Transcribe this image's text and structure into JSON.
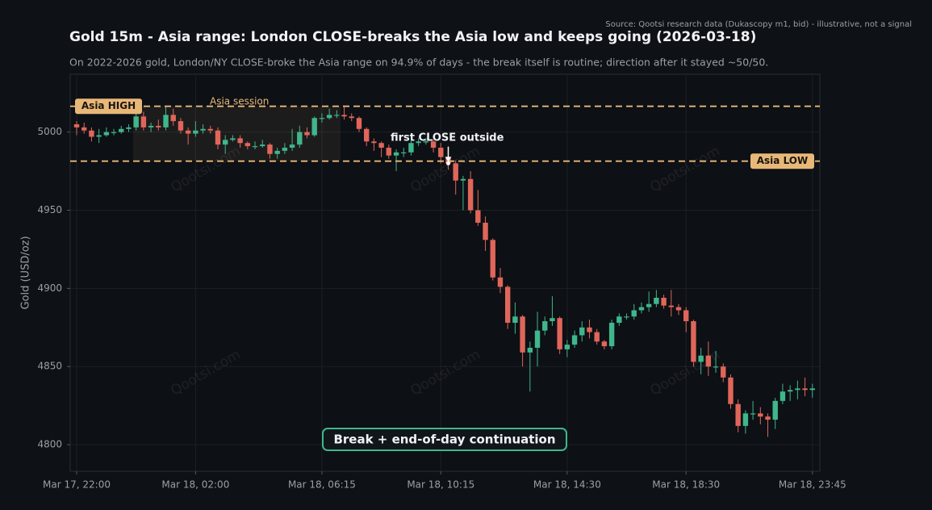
{
  "chart_data": {
    "type": "candlestick",
    "title": "Gold 15m - Asia range: London CLOSE-breaks the Asia low and keeps going (2026-03-18)",
    "subtitle": "On 2022-2026 gold, London/NY CLOSE-broke the Asia range on 94.9% of days - the break itself is routine; direction after it stayed ~50/50.",
    "source": "Source: Qootsi research data (Dukascopy m1, bid) - illustrative, not a signal",
    "ylabel": "Gold (USD/oz)",
    "watermark": "Qootsi.com",
    "categories": [
      "Mar 17, 22:00",
      null,
      null,
      null,
      null,
      null,
      null,
      null,
      null,
      null,
      null,
      null,
      null,
      null,
      null,
      null,
      "Mar 18, 02:00",
      null,
      null,
      null,
      null,
      null,
      null,
      null,
      null,
      null,
      null,
      null,
      null,
      null,
      null,
      null,
      null,
      "Mar 18, 06:15",
      null,
      null,
      null,
      null,
      null,
      null,
      null,
      null,
      null,
      null,
      null,
      null,
      null,
      null,
      null,
      "Mar 18, 10:15",
      null,
      null,
      null,
      null,
      null,
      null,
      null,
      null,
      null,
      null,
      null,
      null,
      null,
      null,
      null,
      null,
      "Mar 18, 14:30",
      null,
      null,
      null,
      null,
      null,
      null,
      null,
      null,
      null,
      null,
      null,
      null,
      null,
      null,
      null,
      "Mar 18, 18:30",
      null,
      null,
      null,
      null,
      null,
      null,
      null,
      null,
      null,
      null,
      null,
      null,
      null,
      null,
      null,
      null,
      "Mar 18, 23:45"
    ],
    "open": [
      5005,
      5003,
      5001,
      4997,
      4998,
      5000,
      5000,
      5002,
      5003,
      5010,
      5003,
      5004,
      5003,
      5011,
      5007,
      5001,
      4999,
      5001,
      5002,
      5001,
      4992,
      4995,
      4996,
      4993,
      4991,
      4991,
      4992,
      4986,
      4988,
      4990,
      4992,
      5000,
      4998,
      5009,
      5009,
      5011,
      5011,
      5010,
      5009,
      5002,
      4994,
      4993,
      4990,
      4985,
      4987,
      4987,
      4993,
      4994,
      4994,
      4990,
      4984,
      4980,
      4969,
      4970,
      4950,
      4942,
      4931,
      4907,
      4901,
      4878,
      4882,
      4859,
      4862,
      4873,
      4879,
      4881,
      4861,
      4864,
      4870,
      4875,
      4872,
      4866,
      4863,
      4878,
      4882,
      4882,
      4886,
      4888,
      4890,
      4894,
      4889,
      4888,
      4886,
      4879,
      4853,
      4857,
      4850,
      4850,
      4843,
      4826,
      4812,
      4820,
      4820,
      4818,
      4816,
      4828,
      4834,
      4835,
      4836,
      4835
    ],
    "high": [
      5007,
      5006,
      5003,
      5002,
      5003,
      5002,
      5004,
      5005,
      5014,
      5013,
      5006,
      5008,
      5016,
      5015,
      5009,
      5003,
      5007,
      5005,
      5004,
      5003,
      4998,
      4998,
      4998,
      4994,
      4994,
      4995,
      4993,
      4990,
      4993,
      5002,
      5004,
      5003,
      5010,
      5012,
      5015,
      5014,
      5016,
      5012,
      5010,
      5003,
      4996,
      4994,
      4992,
      4989,
      4990,
      4995,
      4996,
      4996,
      4995,
      4993,
      4991,
      4982,
      4972,
      4975,
      4963,
      4946,
      4932,
      4913,
      4902,
      4891,
      4883,
      4866,
      4885,
      4882,
      4895,
      4882,
      4867,
      4873,
      4879,
      4880,
      4874,
      4867,
      4880,
      4884,
      4884,
      4890,
      4891,
      4898,
      4899,
      4896,
      4899,
      4890,
      4888,
      4880,
      4862,
      4866,
      4860,
      4852,
      4845,
      4829,
      4822,
      4828,
      4824,
      4820,
      4830,
      4839,
      4838,
      4841,
      4843,
      4839
    ],
    "low": [
      4998,
      4999,
      4994,
      4993,
      4997,
      4998,
      4999,
      5000,
      5001,
      5001,
      5000,
      5001,
      5001,
      5004,
      4999,
      4992,
      4997,
      4999,
      4999,
      4989,
      4986,
      4994,
      4990,
      4989,
      4989,
      4990,
      4983,
      4983,
      4986,
      4988,
      4990,
      4996,
      4997,
      5006,
      5008,
      5009,
      5008,
      5007,
      5000,
      4991,
      4988,
      4984,
      4983,
      4975,
      4984,
      4985,
      4991,
      4992,
      4987,
      4980,
      4976,
      4960,
      4950,
      4948,
      4940,
      4924,
      4905,
      4897,
      4874,
      4871,
      4850,
      4834,
      4850,
      4870,
      4876,
      4858,
      4856,
      4862,
      4866,
      4868,
      4864,
      4861,
      4861,
      4876,
      4880,
      4880,
      4884,
      4885,
      4888,
      4887,
      4882,
      4883,
      4872,
      4850,
      4845,
      4844,
      4846,
      4840,
      4823,
      4808,
      4807,
      4816,
      4813,
      4805,
      4810,
      4826,
      4828,
      4829,
      4831,
      4830
    ],
    "close": [
      5003,
      5001,
      4997,
      4998,
      5000,
      5000,
      5002,
      5003,
      5010,
      5003,
      5004,
      5003,
      5011,
      5007,
      5001,
      4999,
      5001,
      5002,
      5001,
      4992,
      4995,
      4996,
      4993,
      4991,
      4991,
      4992,
      4986,
      4988,
      4990,
      4992,
      5000,
      4998,
      5009,
      5009,
      5011,
      5011,
      5010,
      5009,
      5002,
      4994,
      4993,
      4990,
      4985,
      4987,
      4987,
      4993,
      4994,
      4994,
      4990,
      4984,
      4980,
      4969,
      4970,
      4950,
      4942,
      4931,
      4907,
      4901,
      4878,
      4882,
      4859,
      4862,
      4873,
      4879,
      4881,
      4861,
      4864,
      4870,
      4875,
      4872,
      4866,
      4863,
      4878,
      4882,
      4882,
      4886,
      4888,
      4890,
      4894,
      4889,
      4888,
      4886,
      4879,
      4853,
      4857,
      4850,
      4850,
      4843,
      4826,
      4812,
      4820,
      4820,
      4818,
      4816,
      4828,
      4834,
      4835,
      4836,
      4835,
      4836
    ],
    "up_color": "#3fb68b",
    "down_color": "#e0665a",
    "ylim": [
      4783,
      5037
    ],
    "yticks": [
      4800,
      4850,
      4900,
      4950,
      5000
    ],
    "grid": true,
    "levels": [
      {
        "name": "Asia HIGH",
        "value": 5016.5,
        "color": "#e8b878"
      },
      {
        "name": "Asia LOW",
        "value": 4981.4,
        "color": "#e8b878"
      }
    ],
    "session_label": "Asia session",
    "break_label": "first CLOSE outside",
    "summary": "Break + end-of-day continuation"
  }
}
